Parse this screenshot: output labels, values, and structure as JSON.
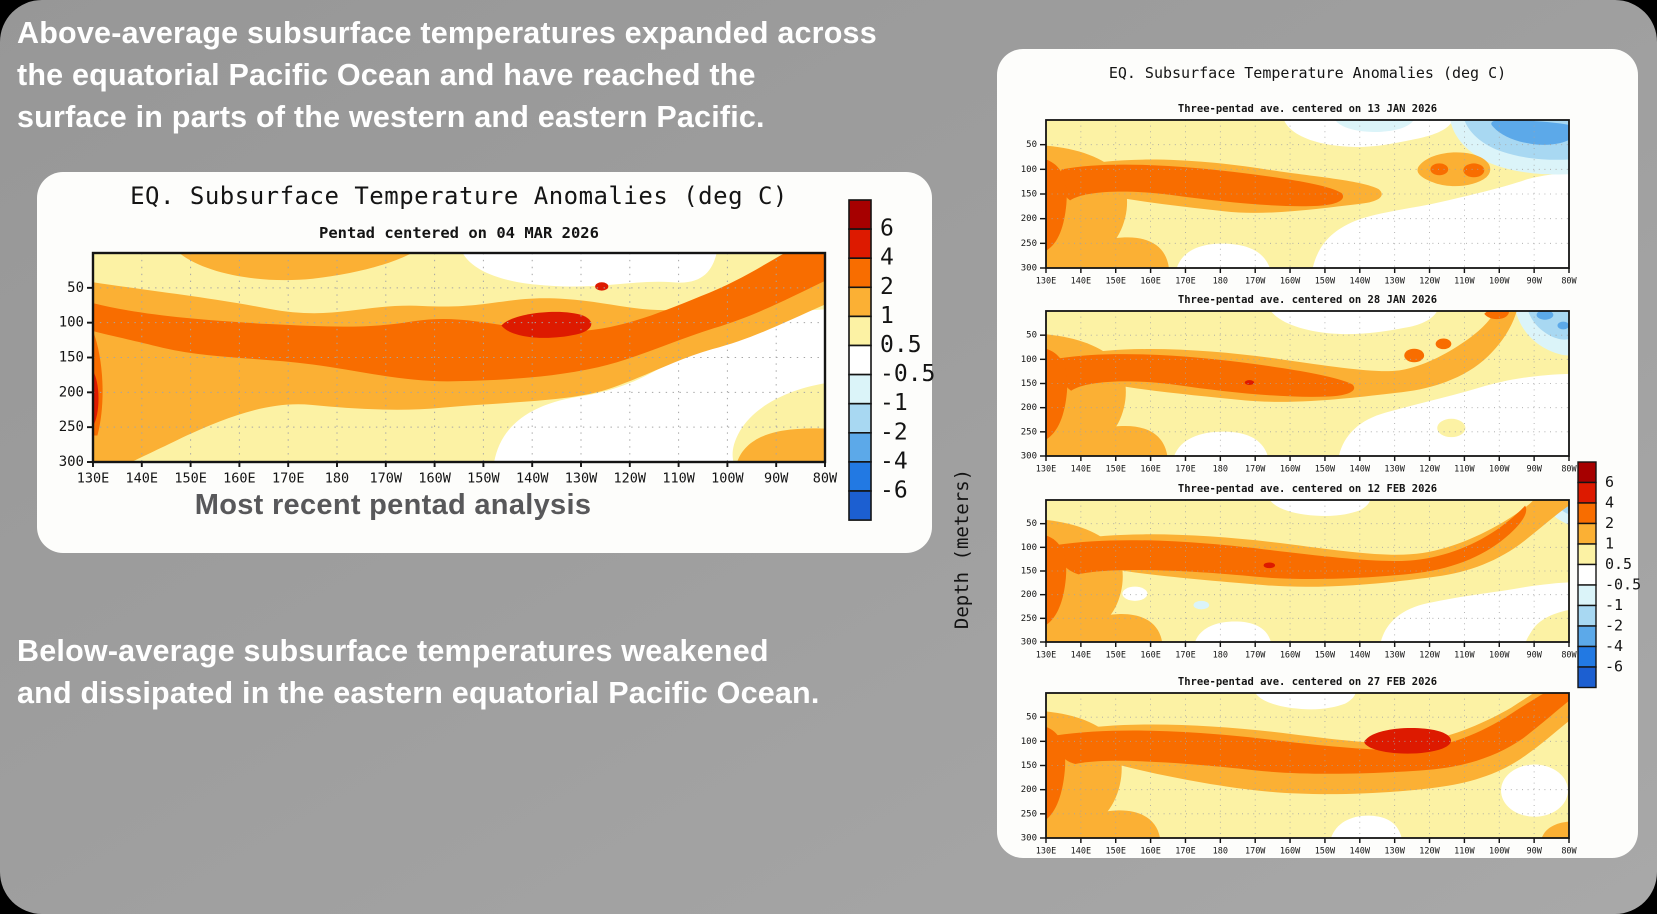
{
  "slide": {
    "top_note_lines": [
      "Above-average subsurface temperatures expanded across",
      "the equatorial Pacific Ocean and have reached the",
      "surface in parts of the western and eastern Pacific."
    ],
    "bottom_note_lines": [
      "Below-average subsurface temperatures weakened",
      "and dissipated in the eastern equatorial Pacific Ocean."
    ],
    "left_panel_caption": "Most recent pentad analysis",
    "colors": {
      "slide_background": "#9e9e9e",
      "panel_background": "#fdfdfb",
      "note_text": "#ffffff",
      "caption_text": "#58585a",
      "chart_text": "#141414",
      "grid_dots": "#a5a5a5",
      "axis": "#141414"
    }
  },
  "axes": {
    "x_tick_labels": [
      "130E",
      "140E",
      "150E",
      "160E",
      "170E",
      "180",
      "170W",
      "160W",
      "150W",
      "140W",
      "130W",
      "120W",
      "110W",
      "100W",
      "90W",
      "80W"
    ],
    "y_tick_labels": [
      "50",
      "100",
      "150",
      "200",
      "250",
      "300"
    ],
    "y_axis_label": "Depth (meters)",
    "y_range_m": [
      0,
      300
    ]
  },
  "colorbar": {
    "tick_labels": [
      "6",
      "4",
      "2",
      "1",
      "0.5",
      "-0.5",
      "-1",
      "-2",
      "-4",
      "-6"
    ],
    "cell_colors_top_to_bottom": [
      "#a60000",
      "#dd1a00",
      "#f86d00",
      "#fbb034",
      "#fcf2a4",
      "#ffffff",
      "#dbf4f9",
      "#a8d8f2",
      "#5ca9e9",
      "#2279e3",
      "#1c5fd1"
    ]
  },
  "chart_data": [
    {
      "id": "main_pentad",
      "type": "filled-contour depth-longitude section",
      "title": "EQ. Subsurface Temperature Anomalies (deg C)",
      "subtitle": "Pentad centered on 04 MAR 2026",
      "x_axis": "longitude from 130E to 80W",
      "y_axis": "depth in meters, 0 at surface to 300 at bottom",
      "contour_levels_deg_c": [
        -6,
        -4,
        -2,
        -1,
        -0.5,
        0.5,
        1,
        2,
        4,
        6
      ],
      "summary": "Warm anomalies of +0.5 to +2 deg C span nearly the whole basin above ~220 m; a +2 to +4 deg C core extends from ~135E to ~110W between ~80 and 190 m, rising eastward and reaching the surface east of ~115W; a small +4 to +6 deg C maximum sits near 130W-120W at ~100 m; weak warm patch also at depth near 90W-80W; no negative anomalies."
    },
    {
      "id": "three_pentad_13jan",
      "type": "filled-contour depth-longitude section",
      "group_title": "EQ. Subsurface Temperature Anomalies (deg C)",
      "subtitle": "Three-pentad ave. centered on 13 JAN 2026",
      "axes_same_as_main": true,
      "contour_levels_deg_c": [
        -6,
        -4,
        -2,
        -1,
        -0.5,
        0.5,
        1,
        2,
        4,
        6
      ],
      "summary": "+2 to +4 deg C core from ~135E to ~155W at 80-200 m with isolated +2 deg C patches near 130W-120W at ~100 m; cool anomalies of -0.5 to -2 deg C at the surface east of ~105W."
    },
    {
      "id": "three_pentad_28jan",
      "type": "filled-contour depth-longitude section",
      "subtitle": "Three-pentad ave. centered on 28 JAN 2026",
      "axes_same_as_main": true,
      "contour_levels_deg_c": [
        -6,
        -4,
        -2,
        -1,
        -0.5,
        0.5,
        1,
        2,
        4,
        6
      ],
      "summary": "Warm core extends east to ~140W at 80-200 m and rises toward the surface near 110W-100W; weakening -0.5 to -2 deg C anomalies confined east of ~95W near the surface."
    },
    {
      "id": "three_pentad_12feb",
      "type": "filled-contour depth-longitude section",
      "subtitle": "Three-pentad ave. centered on 12 FEB 2026",
      "axes_same_as_main": true,
      "contour_levels_deg_c": [
        -6,
        -4,
        -2,
        -1,
        -0.5,
        0.5,
        1,
        2,
        4,
        6
      ],
      "summary": "+2 to +4 deg C band spans 130E to ~100W rising from ~150 m in the west to ~50 m in the east; only a small -0.5 to -1 deg C remnant at the far eastern surface."
    },
    {
      "id": "three_pentad_27feb",
      "type": "filled-contour depth-longitude section",
      "subtitle": "Three-pentad ave. centered on 27 FEB 2026",
      "axes_same_as_main": true,
      "contour_levels_deg_c": [
        -6,
        -4,
        -2,
        -1,
        -0.5,
        0.5,
        1,
        2,
        4,
        6
      ],
      "summary": "Basin-wide +2 to +4 deg C band reaching the surface east of ~100W with a +4 to +6 deg C maximum near 130W-120W at ~100 m; negative anomalies have dissipated."
    }
  ]
}
